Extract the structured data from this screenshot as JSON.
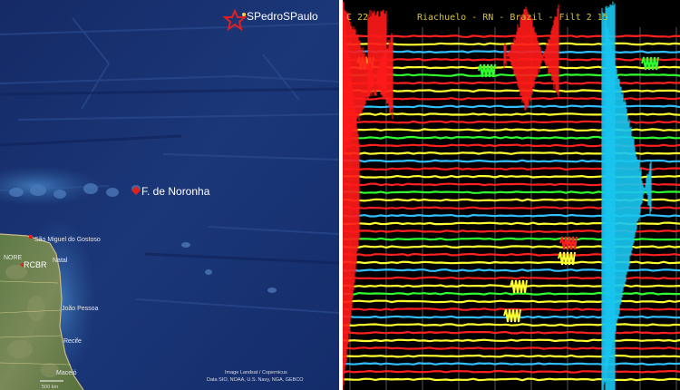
{
  "map": {
    "places": {
      "spedro": "SPedroSPaulo",
      "noronha": "F. de Noronha",
      "saomiguel": "São Miguel do Gostoso",
      "rcbr": "RCBR",
      "natal": "Natal",
      "joaopessoa": "João Pessoa",
      "recife": "Recife",
      "maceio": "Maceió",
      "nore": "NORE"
    },
    "credit_line1": "Image Landsat / Copernicus",
    "credit_line2": "Data SIO, NOAA, U.S. Navy, NGA, GEBCO",
    "scale_label": "500 km"
  },
  "seismogram": {
    "header": "Riachuelo - RN - Brazil - Filt 2 15",
    "header_left": "C 22",
    "trace_colors": [
      "#ff2020",
      "#ffff30",
      "#30ff30",
      "#30c0ff"
    ],
    "event_colors": {
      "first": "#ff1a1a",
      "second": "#19c6f0"
    }
  }
}
